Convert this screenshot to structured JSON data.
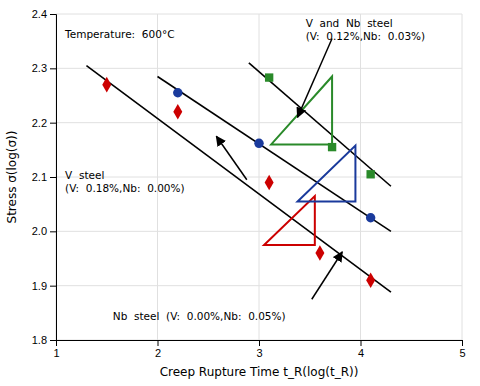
{
  "chart_data": {
    "type": "scatter",
    "xlabel": "Creep Rupture Time t_R(log(t_R))",
    "ylabel": "Stress σ(log(σ))",
    "xlim": [
      1.0,
      5.0
    ],
    "ylim": [
      1.8,
      2.4
    ],
    "xticks": [
      1,
      2,
      3,
      4,
      5
    ],
    "yticks": [
      1.8,
      1.9,
      {
        "value": 2.0,
        "label": "2.0"
      },
      2.1,
      2.2,
      2.3,
      2.4
    ],
    "grid": true,
    "series": [
      {
        "type": "line",
        "color": "#000000",
        "x": [
          1.3,
          4.3
        ],
        "values": [
          2.305,
          1.888
        ]
      },
      {
        "type": "line",
        "color": "#000000",
        "x": [
          2.0,
          4.3
        ],
        "values": [
          2.285,
          2.0
        ]
      },
      {
        "type": "line",
        "color": "#000000",
        "x": [
          2.9,
          4.3
        ],
        "values": [
          2.31,
          2.083
        ]
      },
      {
        "type": "scatter",
        "color": "#cc0000",
        "marker": "diamond",
        "x": [
          1.5,
          2.2,
          3.1,
          3.6,
          4.1
        ],
        "values": [
          2.27,
          2.22,
          2.09,
          1.96,
          1.91
        ]
      },
      {
        "type": "scatter",
        "color": "#1a3a9c",
        "marker": "circle",
        "x": [
          2.2,
          3.0,
          4.1
        ],
        "values": [
          2.255,
          2.162,
          2.025
        ]
      },
      {
        "type": "scatter",
        "color": "#2a8a2a",
        "marker": "square",
        "x": [
          3.1,
          3.72,
          4.1
        ],
        "values": [
          2.283,
          2.155,
          2.105
        ]
      },
      {
        "type": "polygon",
        "color": "#cc0000",
        "x": [
          3.05,
          3.55,
          3.55
        ],
        "values": [
          1.975,
          1.975,
          2.065
        ]
      },
      {
        "type": "polygon",
        "color": "#1a3a9c",
        "x": [
          3.38,
          3.95,
          3.95
        ],
        "values": [
          2.055,
          2.055,
          2.158
        ]
      },
      {
        "type": "polygon",
        "color": "#2a8a2a",
        "x": [
          3.12,
          3.72,
          3.72
        ],
        "values": [
          2.16,
          2.16,
          2.285
        ]
      }
    ],
    "annotations": [
      {
        "text": [
          "Temperature:  600°C"
        ],
        "x": 1.08,
        "y": 2.375
      },
      {
        "text": [
          "V  and  Nb  steel",
          "(V:  0.12%,Nb:  0.03%)"
        ],
        "x": 3.45,
        "y": 2.395
      },
      {
        "text": [
          "V  steel",
          "(V:  0.18%,Nb:  0.00%)"
        ],
        "x": 1.08,
        "y": 2.115
      },
      {
        "text": [
          "Nb  steel  (V:  0.00%,Nb:  0.05%)"
        ],
        "x": 1.55,
        "y": 1.855
      }
    ],
    "arrows": [
      {
        "x": [
          3.72,
          3.38
        ],
        "y": [
          2.355,
          2.21
        ]
      },
      {
        "x": [
          2.88,
          2.58
        ],
        "y": [
          2.095,
          2.175
        ]
      },
      {
        "x": [
          3.52,
          3.82
        ],
        "y": [
          1.875,
          1.962
        ]
      }
    ]
  }
}
